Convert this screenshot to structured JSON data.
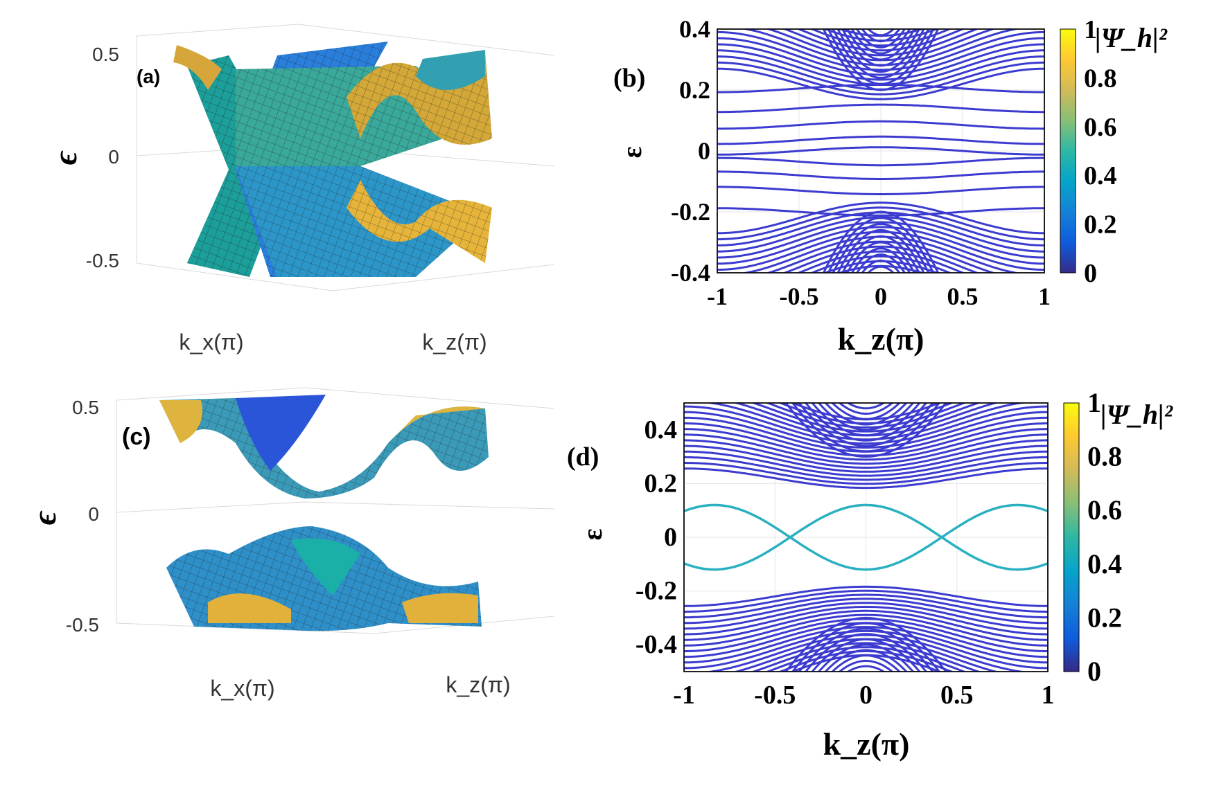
{
  "chart_data": [
    {
      "panel": "(a)",
      "type": "surface3d",
      "zlabel": "ϵ",
      "xlabel": "k_x(π)",
      "ylabel": "k_z(π)",
      "zticks": [
        "0.5",
        "0",
        "-0.5"
      ],
      "zlim": [
        -0.5,
        0.5
      ],
      "gap": false
    },
    {
      "panel": "(b)",
      "type": "line",
      "xlabel": "k_z(π)",
      "ylabel": "ε",
      "xticks": [
        "-1",
        "-0.5",
        "0",
        "0.5",
        "1"
      ],
      "yticks": [
        "0.4",
        "0.2",
        "0",
        "-0.2",
        "-0.4"
      ],
      "xlim": [
        -1,
        1
      ],
      "ylim": [
        -0.4,
        0.4
      ],
      "grid": true,
      "colorbar": {
        "label": "|Ψ_h|²",
        "ticks": [
          "1",
          "0.8",
          "0.6",
          "0.4",
          "0.2",
          "0"
        ],
        "range": [
          0,
          1
        ]
      },
      "subgap_levels": [
        0.205,
        0.14,
        0.085,
        0.035,
        0.0,
        -0.035,
        -0.08,
        -0.13,
        -0.2
      ],
      "edge_state": false
    },
    {
      "panel": "(c)",
      "type": "surface3d",
      "zlabel": "ϵ",
      "xlabel": "k_x(π)",
      "ylabel": "k_z(π)",
      "zticks": [
        "0.5",
        "0",
        "-0.5"
      ],
      "zlim": [
        -0.5,
        0.5
      ],
      "gap": true
    },
    {
      "panel": "(d)",
      "type": "line",
      "xlabel": "k_z(π)",
      "ylabel": "ε",
      "xticks": [
        "-1",
        "-0.5",
        "0",
        "0.5",
        "1"
      ],
      "yticks": [
        "0.4",
        "0.2",
        "0",
        "-0.2",
        "-0.4"
      ],
      "xlim": [
        -1,
        1
      ],
      "ylim": [
        -0.5,
        0.5
      ],
      "grid": true,
      "colorbar": {
        "label": "|Ψ_h|²",
        "ticks": [
          "1",
          "0.8",
          "0.6",
          "0.4",
          "0.2",
          "0"
        ],
        "range": [
          0,
          1
        ]
      },
      "edge_state": {
        "amplitude": 0.12,
        "crossings_kz": [
          -0.42,
          0.42
        ]
      },
      "bulk_gap_edge": 0.17
    }
  ],
  "colors": {
    "parula": [
      "#352a87",
      "#0f5cdd",
      "#1481d6",
      "#06a4ca",
      "#2eb7a4",
      "#87bf77",
      "#d1bb59",
      "#fec832",
      "#f9fb0e"
    ],
    "band_line": "#3b3bd0",
    "edge_line": "#2ab0c0"
  }
}
